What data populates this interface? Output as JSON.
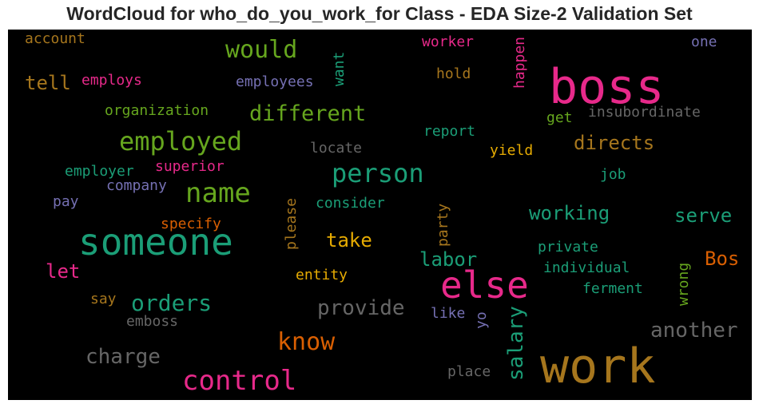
{
  "chart_data": {
    "type": "wordcloud",
    "title": "WordCloud for who_do_you_work_for Class - EDA Size-2 Validation Set",
    "background": "#000000",
    "words": [
      {
        "text": "boss",
        "color": "#e7298a",
        "size": 60,
        "vertical": false
      },
      {
        "text": "work",
        "color": "#a6761d",
        "size": 60,
        "vertical": false
      },
      {
        "text": "else",
        "color": "#e7298a",
        "size": 46,
        "vertical": false
      },
      {
        "text": "someone",
        "color": "#1b9e77",
        "size": 46,
        "vertical": false
      },
      {
        "text": "control",
        "color": "#e7298a",
        "size": 34,
        "vertical": false
      },
      {
        "text": "name",
        "color": "#66a61e",
        "size": 34,
        "vertical": false
      },
      {
        "text": "employed",
        "color": "#66a61e",
        "size": 32,
        "vertical": false
      },
      {
        "text": "person",
        "color": "#1b9e77",
        "size": 32,
        "vertical": false
      },
      {
        "text": "would",
        "color": "#66a61e",
        "size": 30,
        "vertical": false
      },
      {
        "text": "know",
        "color": "#d95f02",
        "size": 30,
        "vertical": false
      },
      {
        "text": "different",
        "color": "#66a61e",
        "size": 27,
        "vertical": false
      },
      {
        "text": "orders",
        "color": "#1b9e77",
        "size": 28,
        "vertical": false
      },
      {
        "text": "another",
        "color": "#666666",
        "size": 26,
        "vertical": false
      },
      {
        "text": "salary",
        "color": "#1b9e77",
        "size": 26,
        "vertical": true
      },
      {
        "text": "provide",
        "color": "#666666",
        "size": 26,
        "vertical": false
      },
      {
        "text": "charge",
        "color": "#666666",
        "size": 26,
        "vertical": false
      },
      {
        "text": "directs",
        "color": "#a6761d",
        "size": 24,
        "vertical": false
      },
      {
        "text": "tell",
        "color": "#a6761d",
        "size": 24,
        "vertical": false
      },
      {
        "text": "working",
        "color": "#1b9e77",
        "size": 24,
        "vertical": false
      },
      {
        "text": "serve",
        "color": "#1b9e77",
        "size": 24,
        "vertical": false
      },
      {
        "text": "take",
        "color": "#e6ab02",
        "size": 24,
        "vertical": false
      },
      {
        "text": "labor",
        "color": "#1b9e77",
        "size": 24,
        "vertical": false
      },
      {
        "text": "let",
        "color": "#e7298a",
        "size": 24,
        "vertical": false
      },
      {
        "text": "Bos",
        "color": "#d95f02",
        "size": 24,
        "vertical": false
      },
      {
        "text": "insubordinate",
        "color": "#666666",
        "size": 18,
        "vertical": false
      },
      {
        "text": "organization",
        "color": "#66a61e",
        "size": 18,
        "vertical": false
      },
      {
        "text": "employees",
        "color": "#7570b3",
        "size": 18,
        "vertical": false
      },
      {
        "text": "individual",
        "color": "#1b9e77",
        "size": 18,
        "vertical": false
      },
      {
        "text": "happen",
        "color": "#e7298a",
        "size": 18,
        "vertical": true
      },
      {
        "text": "ferment",
        "color": "#1b9e77",
        "size": 18,
        "vertical": false
      },
      {
        "text": "employer",
        "color": "#1b9e77",
        "size": 18,
        "vertical": false
      },
      {
        "text": "superior",
        "color": "#e7298a",
        "size": 18,
        "vertical": false
      },
      {
        "text": "company",
        "color": "#7570b3",
        "size": 18,
        "vertical": false
      },
      {
        "text": "consider",
        "color": "#1b9e77",
        "size": 18,
        "vertical": false
      },
      {
        "text": "private",
        "color": "#1b9e77",
        "size": 18,
        "vertical": false
      },
      {
        "text": "specify",
        "color": "#d95f02",
        "size": 18,
        "vertical": false
      },
      {
        "text": "account",
        "color": "#a6761d",
        "size": 18,
        "vertical": false
      },
      {
        "text": "employs",
        "color": "#e7298a",
        "size": 18,
        "vertical": false
      },
      {
        "text": "worker",
        "color": "#e7298a",
        "size": 18,
        "vertical": false
      },
      {
        "text": "report",
        "color": "#1b9e77",
        "size": 18,
        "vertical": false
      },
      {
        "text": "locate",
        "color": "#666666",
        "size": 18,
        "vertical": false
      },
      {
        "text": "entity",
        "color": "#e6ab02",
        "size": 18,
        "vertical": false
      },
      {
        "text": "emboss",
        "color": "#666666",
        "size": 18,
        "vertical": false
      },
      {
        "text": "please",
        "color": "#a6761d",
        "size": 18,
        "vertical": true
      },
      {
        "text": "party",
        "color": "#a6761d",
        "size": 18,
        "vertical": true
      },
      {
        "text": "wrong",
        "color": "#66a61e",
        "size": 18,
        "vertical": true
      },
      {
        "text": "yield",
        "color": "#e6ab02",
        "size": 18,
        "vertical": false
      },
      {
        "text": "place",
        "color": "#666666",
        "size": 18,
        "vertical": false
      },
      {
        "text": "want",
        "color": "#1b9e77",
        "size": 18,
        "vertical": true
      },
      {
        "text": "hold",
        "color": "#a6761d",
        "size": 18,
        "vertical": false
      },
      {
        "text": "like",
        "color": "#7570b3",
        "size": 18,
        "vertical": false
      },
      {
        "text": "say",
        "color": "#a6761d",
        "size": 18,
        "vertical": false
      },
      {
        "text": "pay",
        "color": "#7570b3",
        "size": 18,
        "vertical": false
      },
      {
        "text": "get",
        "color": "#66a61e",
        "size": 18,
        "vertical": false
      },
      {
        "text": "job",
        "color": "#1b9e77",
        "size": 18,
        "vertical": false
      },
      {
        "text": "one",
        "color": "#7570b3",
        "size": 18,
        "vertical": false
      },
      {
        "text": "yo",
        "color": "#7570b3",
        "size": 18,
        "vertical": true
      }
    ]
  }
}
